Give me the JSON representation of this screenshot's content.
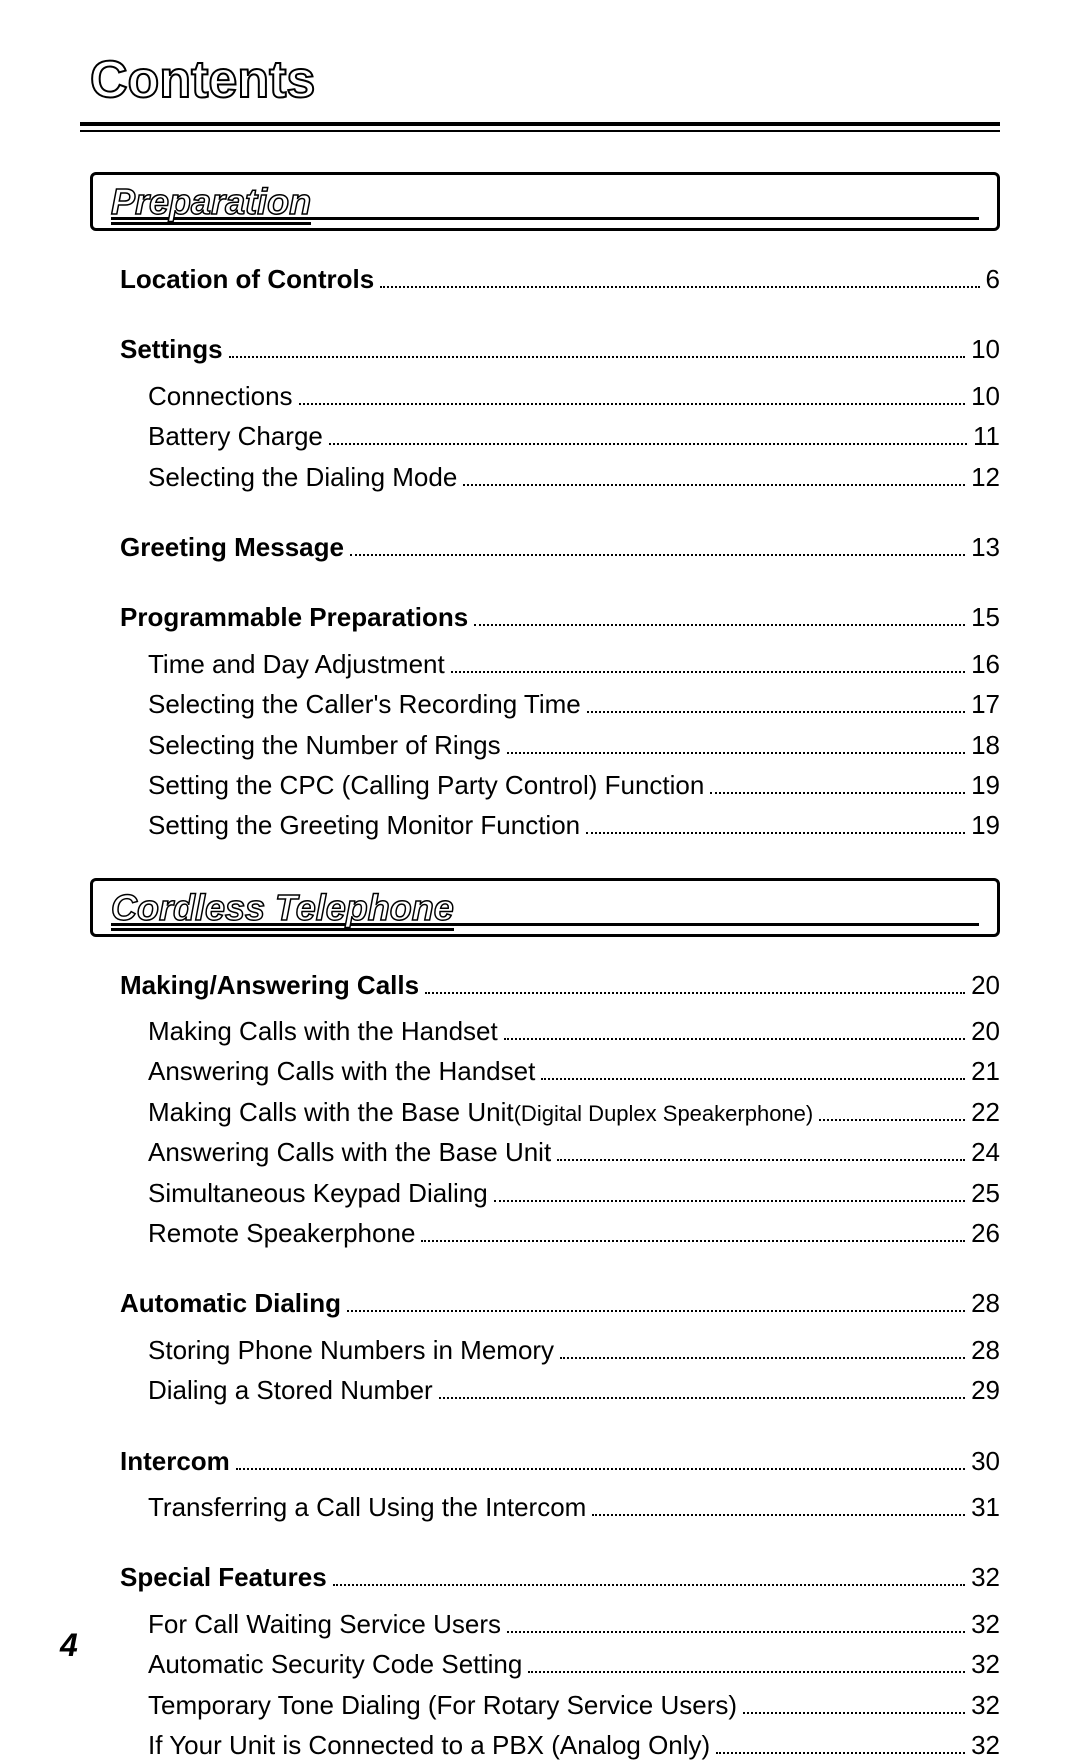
{
  "title": "Contents",
  "page_number": "4",
  "sections": [
    {
      "heading": "Preparation",
      "groups": [
        {
          "top": {
            "label": "Location of Controls",
            "page": "6"
          },
          "subs": []
        },
        {
          "top": {
            "label": "Settings",
            "page": "10"
          },
          "subs": [
            {
              "label": "Connections",
              "page": "10"
            },
            {
              "label": "Battery Charge",
              "page": "11"
            },
            {
              "label": "Selecting the Dialing Mode",
              "page": "12"
            }
          ]
        },
        {
          "top": {
            "label": "Greeting Message",
            "page": "13"
          },
          "subs": []
        },
        {
          "top": {
            "label": "Programmable Preparations",
            "page": "15"
          },
          "subs": [
            {
              "label": "Time and Day Adjustment",
              "page": "16"
            },
            {
              "label": "Selecting the Caller's Recording Time",
              "page": "17"
            },
            {
              "label": "Selecting the Number of Rings",
              "page": "18"
            },
            {
              "label": "Setting the CPC (Calling Party Control) Function",
              "page": "19"
            },
            {
              "label": "Setting the Greeting Monitor Function",
              "page": "19"
            }
          ]
        }
      ]
    },
    {
      "heading": "Cordless Telephone",
      "groups": [
        {
          "top": {
            "label": "Making/Answering Calls",
            "page": "20"
          },
          "subs": [
            {
              "label": "Making Calls with the Handset",
              "page": "20"
            },
            {
              "label": "Answering Calls with the Handset",
              "page": "21"
            },
            {
              "label": "Making Calls with the Base Unit",
              "note": "(Digital Duplex Speakerphone)",
              "page": "22"
            },
            {
              "label": "Answering Calls with the Base Unit",
              "page": "24"
            },
            {
              "label": "Simultaneous Keypad Dialing",
              "page": "25"
            },
            {
              "label": "Remote Speakerphone",
              "page": "26"
            }
          ]
        },
        {
          "top": {
            "label": "Automatic Dialing",
            "page": "28"
          },
          "subs": [
            {
              "label": "Storing Phone Numbers in Memory",
              "page": "28"
            },
            {
              "label": "Dialing a Stored Number",
              "page": "29"
            }
          ]
        },
        {
          "top": {
            "label": "Intercom",
            "page": "30"
          },
          "subs": [
            {
              "label": "Transferring a Call Using the Intercom",
              "page": "31"
            }
          ]
        },
        {
          "top": {
            "label": "Special Features",
            "page": "32"
          },
          "subs": [
            {
              "label": "For Call Waiting Service Users",
              "page": "32"
            },
            {
              "label": "Automatic Security Code Setting",
              "page": "32"
            },
            {
              "label": "Temporary Tone Dialing (For Rotary Service Users)",
              "page": "32"
            },
            {
              "label": "If Your Unit is Connected to a PBX (Analog Only)",
              "page": "32"
            }
          ]
        }
      ]
    }
  ]
}
